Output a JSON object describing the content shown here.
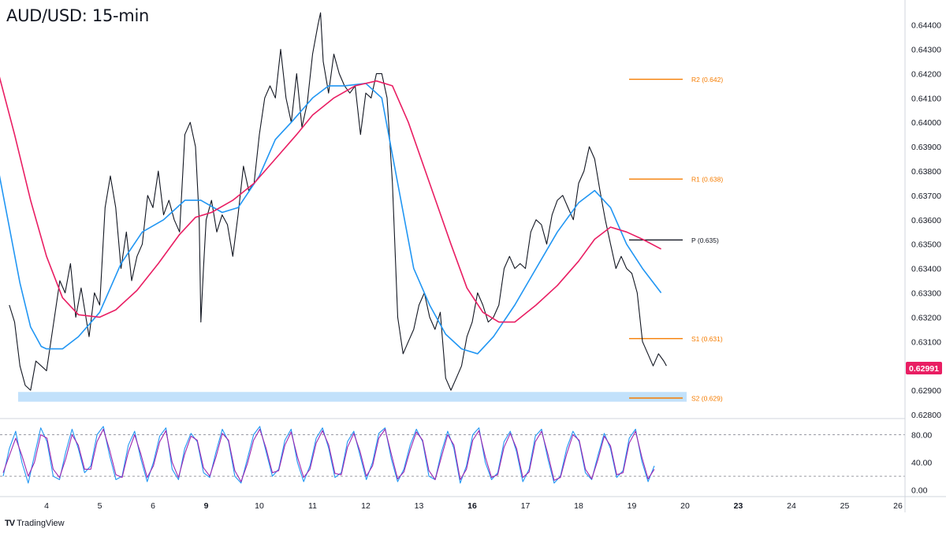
{
  "chart_data": {
    "type": "line",
    "title": "AUD/USD: 15-min",
    "brand": "TradingView",
    "x_tick_labels": [
      "4",
      "5",
      "6",
      "9",
      "10",
      "11",
      "12",
      "13",
      "16",
      "17",
      "18",
      "19",
      "20",
      "23",
      "24",
      "25",
      "26"
    ],
    "bold_x_ticks": [
      "9",
      "16",
      "23"
    ],
    "y_tick_labels": [
      "0.64400",
      "0.64300",
      "0.64200",
      "0.64100",
      "0.64000",
      "0.63900",
      "0.63800",
      "0.63700",
      "0.63600",
      "0.63500",
      "0.63400",
      "0.63300",
      "0.63200",
      "0.63100",
      "0.63000",
      "0.62900",
      "0.62800"
    ],
    "ylim": [
      0.628,
      0.6447
    ],
    "current_price": {
      "label": "0.62991",
      "value": 0.62991,
      "color": "#e91e63"
    },
    "support_zone": {
      "from": 0.62853,
      "to": 0.62893,
      "color": "#bbdefb"
    },
    "pivot_levels": [
      {
        "label": "R2 (0.642)",
        "value": 0.64177,
        "color": "#f57c00"
      },
      {
        "label": "R1 (0.638)",
        "value": 0.63767,
        "color": "#f57c00"
      },
      {
        "label": "P (0.635)",
        "value": 0.63517,
        "color": "#131722"
      },
      {
        "label": "S1 (0.631)",
        "value": 0.63112,
        "color": "#f57c00"
      },
      {
        "label": "S2 (0.629)",
        "value": 0.62868,
        "color": "#f57c00"
      }
    ],
    "series": [
      {
        "kind": "price",
        "color": "#131722",
        "points": [
          [
            -0.7,
            0.6325
          ],
          [
            -0.6,
            0.6318
          ],
          [
            -0.5,
            0.63
          ],
          [
            -0.4,
            0.6292
          ],
          [
            -0.3,
            0.629
          ],
          [
            -0.2,
            0.6302
          ],
          [
            -0.1,
            0.63
          ],
          [
            0.0,
            0.6298
          ],
          [
            0.15,
            0.632
          ],
          [
            0.25,
            0.6335
          ],
          [
            0.35,
            0.633
          ],
          [
            0.45,
            0.6342
          ],
          [
            0.55,
            0.632
          ],
          [
            0.65,
            0.6332
          ],
          [
            0.8,
            0.6312
          ],
          [
            0.9,
            0.633
          ],
          [
            1.0,
            0.6325
          ],
          [
            1.1,
            0.6365
          ],
          [
            1.2,
            0.6378
          ],
          [
            1.3,
            0.6365
          ],
          [
            1.4,
            0.634
          ],
          [
            1.5,
            0.6355
          ],
          [
            1.6,
            0.6335
          ],
          [
            1.7,
            0.6345
          ],
          [
            1.8,
            0.635
          ],
          [
            1.9,
            0.637
          ],
          [
            2.0,
            0.6365
          ],
          [
            2.1,
            0.638
          ],
          [
            2.2,
            0.6362
          ],
          [
            2.3,
            0.6368
          ],
          [
            2.4,
            0.636
          ],
          [
            2.5,
            0.6355
          ],
          [
            2.6,
            0.6395
          ],
          [
            2.7,
            0.64
          ],
          [
            2.8,
            0.639
          ],
          [
            2.87,
            0.636
          ],
          [
            2.9,
            0.6318
          ],
          [
            2.95,
            0.634
          ],
          [
            3.0,
            0.636
          ],
          [
            3.1,
            0.6368
          ],
          [
            3.2,
            0.6355
          ],
          [
            3.3,
            0.6362
          ],
          [
            3.4,
            0.6358
          ],
          [
            3.5,
            0.6345
          ],
          [
            3.6,
            0.6362
          ],
          [
            3.7,
            0.6382
          ],
          [
            3.8,
            0.6372
          ],
          [
            3.9,
            0.6375
          ],
          [
            4.0,
            0.6395
          ],
          [
            4.1,
            0.641
          ],
          [
            4.2,
            0.6415
          ],
          [
            4.3,
            0.641
          ],
          [
            4.4,
            0.643
          ],
          [
            4.5,
            0.641
          ],
          [
            4.6,
            0.64
          ],
          [
            4.7,
            0.642
          ],
          [
            4.8,
            0.6398
          ],
          [
            4.9,
            0.6408
          ],
          [
            5.0,
            0.6428
          ],
          [
            5.1,
            0.644
          ],
          [
            5.15,
            0.6445
          ],
          [
            5.2,
            0.6425
          ],
          [
            5.3,
            0.6412
          ],
          [
            5.4,
            0.6428
          ],
          [
            5.5,
            0.642
          ],
          [
            5.6,
            0.6415
          ],
          [
            5.7,
            0.6412
          ],
          [
            5.8,
            0.6415
          ],
          [
            5.9,
            0.6395
          ],
          [
            6.0,
            0.6412
          ],
          [
            6.1,
            0.641
          ],
          [
            6.2,
            0.642
          ],
          [
            6.3,
            0.642
          ],
          [
            6.4,
            0.641
          ],
          [
            6.5,
            0.6375
          ],
          [
            6.6,
            0.632
          ],
          [
            6.7,
            0.6305
          ],
          [
            6.8,
            0.631
          ],
          [
            6.9,
            0.6315
          ],
          [
            7.0,
            0.6325
          ],
          [
            7.1,
            0.633
          ],
          [
            7.2,
            0.632
          ],
          [
            7.3,
            0.6315
          ],
          [
            7.4,
            0.6322
          ],
          [
            7.5,
            0.6295
          ],
          [
            7.6,
            0.629
          ],
          [
            7.7,
            0.6295
          ],
          [
            7.8,
            0.63
          ],
          [
            7.9,
            0.6312
          ],
          [
            8.0,
            0.6318
          ],
          [
            8.1,
            0.633
          ],
          [
            8.2,
            0.6325
          ],
          [
            8.3,
            0.6318
          ],
          [
            8.4,
            0.632
          ],
          [
            8.5,
            0.6325
          ],
          [
            8.6,
            0.634
          ],
          [
            8.7,
            0.6345
          ],
          [
            8.8,
            0.634
          ],
          [
            8.9,
            0.6342
          ],
          [
            9.0,
            0.634
          ],
          [
            9.1,
            0.6355
          ],
          [
            9.2,
            0.636
          ],
          [
            9.3,
            0.6358
          ],
          [
            9.4,
            0.635
          ],
          [
            9.5,
            0.6362
          ],
          [
            9.6,
            0.6368
          ],
          [
            9.7,
            0.637
          ],
          [
            9.8,
            0.6365
          ],
          [
            9.9,
            0.636
          ],
          [
            10.0,
            0.6375
          ],
          [
            10.1,
            0.638
          ],
          [
            10.2,
            0.639
          ],
          [
            10.3,
            0.6385
          ],
          [
            10.4,
            0.6372
          ],
          [
            10.5,
            0.636
          ],
          [
            10.6,
            0.635
          ],
          [
            10.7,
            0.634
          ],
          [
            10.8,
            0.6345
          ],
          [
            10.9,
            0.634
          ],
          [
            11.0,
            0.6338
          ],
          [
            11.1,
            0.633
          ],
          [
            11.2,
            0.631
          ],
          [
            11.3,
            0.6305
          ],
          [
            11.4,
            0.63
          ],
          [
            11.5,
            0.6305
          ],
          [
            11.6,
            0.6302
          ],
          [
            11.65,
            0.63
          ]
        ]
      },
      {
        "kind": "ma_fast",
        "color": "#2196f3",
        "points": [
          [
            -0.9,
            0.638
          ],
          [
            -0.7,
            0.6357
          ],
          [
            -0.5,
            0.6334
          ],
          [
            -0.3,
            0.6316
          ],
          [
            -0.1,
            0.6308
          ],
          [
            0.0,
            0.6307
          ],
          [
            0.3,
            0.6307
          ],
          [
            0.6,
            0.6312
          ],
          [
            1.0,
            0.6322
          ],
          [
            1.4,
            0.6342
          ],
          [
            1.8,
            0.6355
          ],
          [
            2.2,
            0.636
          ],
          [
            2.6,
            0.6368
          ],
          [
            2.9,
            0.6368
          ],
          [
            3.3,
            0.6363
          ],
          [
            3.6,
            0.6365
          ],
          [
            4.0,
            0.6378
          ],
          [
            4.3,
            0.6393
          ],
          [
            4.6,
            0.64
          ],
          [
            5.0,
            0.641
          ],
          [
            5.3,
            0.6415
          ],
          [
            5.6,
            0.6415
          ],
          [
            6.0,
            0.6416
          ],
          [
            6.3,
            0.641
          ],
          [
            6.6,
            0.6375
          ],
          [
            6.9,
            0.634
          ],
          [
            7.2,
            0.6325
          ],
          [
            7.5,
            0.6313
          ],
          [
            7.8,
            0.6307
          ],
          [
            8.1,
            0.6305
          ],
          [
            8.4,
            0.6312
          ],
          [
            8.8,
            0.6325
          ],
          [
            9.2,
            0.634
          ],
          [
            9.6,
            0.6355
          ],
          [
            10.0,
            0.6367
          ],
          [
            10.3,
            0.6372
          ],
          [
            10.6,
            0.6365
          ],
          [
            10.9,
            0.635
          ],
          [
            11.2,
            0.634
          ],
          [
            11.55,
            0.633
          ]
        ]
      },
      {
        "kind": "ma_slow",
        "color": "#e91e63",
        "points": [
          [
            -0.9,
            0.642
          ],
          [
            -0.6,
            0.6395
          ],
          [
            -0.3,
            0.6368
          ],
          [
            0.0,
            0.6345
          ],
          [
            0.3,
            0.6328
          ],
          [
            0.6,
            0.6321
          ],
          [
            1.0,
            0.632
          ],
          [
            1.3,
            0.6323
          ],
          [
            1.7,
            0.6331
          ],
          [
            2.1,
            0.6342
          ],
          [
            2.5,
            0.6354
          ],
          [
            2.8,
            0.6361
          ],
          [
            3.1,
            0.6363
          ],
          [
            3.5,
            0.6368
          ],
          [
            3.9,
            0.6375
          ],
          [
            4.3,
            0.6385
          ],
          [
            4.7,
            0.6395
          ],
          [
            5.0,
            0.6403
          ],
          [
            5.4,
            0.641
          ],
          [
            5.8,
            0.6415
          ],
          [
            6.2,
            0.6417
          ],
          [
            6.5,
            0.6415
          ],
          [
            6.8,
            0.64
          ],
          [
            7.2,
            0.6375
          ],
          [
            7.6,
            0.635
          ],
          [
            7.9,
            0.6332
          ],
          [
            8.2,
            0.6322
          ],
          [
            8.5,
            0.6318
          ],
          [
            8.8,
            0.6318
          ],
          [
            9.2,
            0.6325
          ],
          [
            9.6,
            0.6333
          ],
          [
            10.0,
            0.6343
          ],
          [
            10.3,
            0.6352
          ],
          [
            10.6,
            0.6357
          ],
          [
            10.9,
            0.6355
          ],
          [
            11.2,
            0.6352
          ],
          [
            11.55,
            0.6348
          ]
        ]
      }
    ],
    "oscillator": {
      "y_tick_labels": [
        "80.00",
        "40.00",
        "0.00"
      ],
      "ylim": [
        -5,
        100
      ],
      "levels": [
        80,
        20
      ],
      "series": [
        {
          "kind": "k",
          "color": "#2196f3",
          "values": [
            20,
            60,
            85,
            40,
            10,
            50,
            90,
            70,
            20,
            15,
            55,
            88,
            60,
            25,
            35,
            80,
            92,
            50,
            15,
            20,
            65,
            85,
            45,
            12,
            40,
            78,
            90,
            30,
            15,
            60,
            82,
            70,
            25,
            18,
            55,
            88,
            70,
            20,
            10,
            45,
            80,
            92,
            55,
            20,
            30,
            72,
            88,
            40,
            12,
            35,
            75,
            90,
            60,
            18,
            25,
            70,
            85,
            50,
            15,
            40,
            82,
            90,
            45,
            12,
            30,
            65,
            88,
            70,
            20,
            15,
            55,
            85,
            60,
            10,
            35,
            80,
            90,
            40,
            15,
            25,
            70,
            85,
            55,
            12,
            30,
            78,
            88,
            45,
            10,
            20,
            60,
            85,
            70,
            25,
            15,
            50,
            82,
            60,
            18,
            28,
            75,
            88,
            42,
            12,
            35
          ]
        },
        {
          "kind": "d",
          "color": "#9c27b0",
          "values": [
            25,
            50,
            75,
            50,
            20,
            40,
            80,
            75,
            30,
            18,
            45,
            80,
            65,
            30,
            30,
            70,
            88,
            58,
            22,
            18,
            55,
            80,
            52,
            18,
            35,
            70,
            86,
            40,
            18,
            52,
            78,
            72,
            32,
            20,
            48,
            82,
            72,
            28,
            12,
            38,
            72,
            88,
            60,
            25,
            28,
            65,
            84,
            48,
            18,
            30,
            68,
            86,
            65,
            24,
            22,
            62,
            82,
            56,
            20,
            35,
            75,
            88,
            52,
            16,
            26,
            58,
            84,
            72,
            28,
            15,
            48,
            80,
            65,
            15,
            30,
            72,
            86,
            48,
            18,
            22,
            62,
            82,
            60,
            18,
            26,
            70,
            85,
            52,
            14,
            18,
            52,
            80,
            72,
            30,
            16,
            44,
            78,
            64,
            22,
            25,
            68,
            85,
            48,
            16,
            30
          ]
        }
      ]
    }
  }
}
